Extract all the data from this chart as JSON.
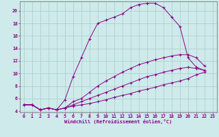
{
  "xlabel": "Windchill (Refroidissement éolien,°C)",
  "background_color": "#ceeaea",
  "grid_color": "#a8cccc",
  "line_color": "#880088",
  "xlim": [
    -0.5,
    23.5
  ],
  "ylim": [
    3.8,
    21.5
  ],
  "yticks": [
    4,
    6,
    8,
    10,
    12,
    14,
    16,
    18,
    20
  ],
  "xticks": [
    0,
    1,
    2,
    3,
    4,
    5,
    6,
    7,
    8,
    9,
    10,
    11,
    12,
    13,
    14,
    15,
    16,
    17,
    18,
    19,
    20,
    21,
    22,
    23
  ],
  "curves": [
    {
      "x": [
        0,
        1,
        2,
        3,
        4,
        5,
        6,
        7,
        8,
        9,
        10,
        11,
        12,
        13,
        14,
        15,
        16,
        17,
        18,
        19,
        20,
        21,
        22
      ],
      "y": [
        5.0,
        5.0,
        4.2,
        4.5,
        4.2,
        5.8,
        9.5,
        12.5,
        15.5,
        18.0,
        18.5,
        19.0,
        19.5,
        20.5,
        21.0,
        21.2,
        21.2,
        20.5,
        19.0,
        17.5,
        12.5,
        11.0,
        10.5
      ]
    },
    {
      "x": [
        0,
        1,
        2,
        3,
        4,
        5,
        6,
        7,
        8,
        9,
        10,
        11,
        12,
        13,
        14,
        15,
        16,
        17,
        18,
        19,
        20,
        21,
        22
      ],
      "y": [
        5.0,
        5.0,
        4.2,
        4.5,
        4.2,
        4.5,
        5.5,
        6.0,
        7.0,
        8.0,
        8.8,
        9.5,
        10.2,
        10.8,
        11.4,
        11.8,
        12.2,
        12.5,
        12.8,
        13.0,
        13.0,
        12.5,
        11.2
      ]
    },
    {
      "x": [
        0,
        1,
        2,
        3,
        4,
        5,
        6,
        7,
        8,
        9,
        10,
        11,
        12,
        13,
        14,
        15,
        16,
        17,
        18,
        19,
        20,
        21,
        22
      ],
      "y": [
        5.0,
        5.0,
        4.2,
        4.5,
        4.2,
        4.5,
        5.0,
        5.5,
        6.0,
        6.5,
        7.0,
        7.5,
        8.0,
        8.5,
        9.0,
        9.5,
        9.8,
        10.2,
        10.5,
        10.8,
        11.0,
        10.8,
        10.5
      ]
    },
    {
      "x": [
        0,
        1,
        2,
        3,
        4,
        5,
        6,
        7,
        8,
        9,
        10,
        11,
        12,
        13,
        14,
        15,
        16,
        17,
        18,
        19,
        20,
        21,
        22
      ],
      "y": [
        5.0,
        5.0,
        4.2,
        4.5,
        4.2,
        4.5,
        4.8,
        5.0,
        5.2,
        5.5,
        5.8,
        6.2,
        6.5,
        6.8,
        7.2,
        7.5,
        7.8,
        8.2,
        8.5,
        8.8,
        9.2,
        9.8,
        10.2
      ]
    }
  ]
}
